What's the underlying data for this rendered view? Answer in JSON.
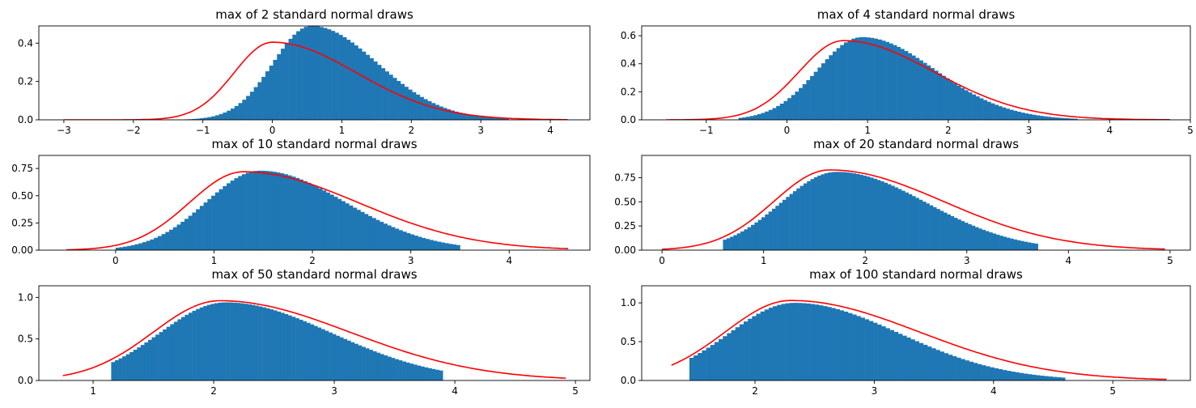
{
  "chart_data": [
    {
      "type": "bar",
      "title": "max of 2 standard normal draws",
      "xlim": [
        -3.36,
        4.57
      ],
      "ylim": [
        0,
        0.49
      ],
      "xticks": [
        -3,
        -2,
        -1,
        0,
        1,
        2,
        3,
        4
      ],
      "xtick_labels": [
        "−3",
        "−2",
        "−1",
        "0",
        "1",
        "2",
        "3",
        "4"
      ],
      "yticks": [
        0,
        0.2,
        0.4
      ],
      "ytick_labels": [
        "0.0",
        "0.2",
        "0.4"
      ],
      "hist_range": [
        -1.6,
        3.4
      ],
      "mode": 0.56,
      "peak": 0.49,
      "skew": 0.9,
      "curve_range": [
        -3.0,
        4.25
      ],
      "curve_mode": 0.0,
      "curve_peak": 0.405,
      "curve_skew": 1.5
    },
    {
      "type": "bar",
      "title": "max of 4 standard normal draws",
      "xlim": [
        -1.8,
        5.0
      ],
      "ylim": [
        0,
        0.67
      ],
      "xticks": [
        -1,
        0,
        1,
        2,
        3,
        4,
        5
      ],
      "xtick_labels": [
        "−1",
        "0",
        "1",
        "2",
        "3",
        "4",
        "5"
      ],
      "yticks": [
        0,
        0.2,
        0.4,
        0.6
      ],
      "ytick_labels": [
        "0.0",
        "0.2",
        "0.4",
        "0.6"
      ],
      "hist_range": [
        -0.6,
        3.6
      ],
      "mode": 0.93,
      "peak": 0.59,
      "skew": 0.8,
      "curve_range": [
        -1.5,
        4.75
      ],
      "curve_mode": 0.7,
      "curve_peak": 0.565,
      "curve_skew": 1.3
    },
    {
      "type": "bar",
      "title": "max of 10 standard normal draws",
      "xlim": [
        -0.78,
        4.82
      ],
      "ylim": [
        0,
        0.87
      ],
      "xticks": [
        0,
        1,
        2,
        3,
        4
      ],
      "xtick_labels": [
        "0",
        "1",
        "2",
        "3",
        "4"
      ],
      "yticks": [
        0,
        0.25,
        0.5,
        0.75
      ],
      "ytick_labels": [
        "0.00",
        "0.25",
        "0.50",
        "0.75"
      ],
      "hist_range": [
        0.0,
        3.5
      ],
      "mode": 1.47,
      "peak": 0.73,
      "skew": 0.7,
      "curve_range": [
        -0.5,
        4.6
      ],
      "curve_mode": 1.3,
      "curve_peak": 0.72,
      "curve_skew": 1.4
    },
    {
      "type": "bar",
      "title": "max of 20 standard normal draws",
      "xlim": [
        -0.2,
        5.2
      ],
      "ylim": [
        0,
        0.98
      ],
      "xticks": [
        0,
        1,
        2,
        3,
        4,
        5
      ],
      "xtick_labels": [
        "0",
        "1",
        "2",
        "3",
        "4",
        "5"
      ],
      "yticks": [
        0,
        0.25,
        0.5,
        0.75
      ],
      "ytick_labels": [
        "0.00",
        "0.25",
        "0.50",
        "0.75"
      ],
      "hist_range": [
        0.6,
        3.7
      ],
      "mode": 1.72,
      "peak": 0.81,
      "skew": 0.75,
      "curve_range": [
        0.0,
        4.95
      ],
      "curve_mode": 1.65,
      "curve_peak": 0.83,
      "curve_skew": 1.3
    },
    {
      "type": "bar",
      "title": "max of 50 standard normal draws",
      "xlim": [
        0.55,
        5.12
      ],
      "ylim": [
        0,
        1.14
      ],
      "xticks": [
        1,
        2,
        3,
        4,
        5
      ],
      "xtick_labels": [
        "1",
        "2",
        "3",
        "4",
        "5"
      ],
      "yticks": [
        0,
        0.5,
        1.0
      ],
      "ytick_labels": [
        "0.0",
        "0.5",
        "1.0"
      ],
      "hist_range": [
        1.15,
        3.9
      ],
      "mode": 2.1,
      "peak": 0.94,
      "skew": 0.75,
      "curve_range": [
        0.75,
        4.92
      ],
      "curve_mode": 2.05,
      "curve_peak": 0.96,
      "curve_skew": 1.2
    },
    {
      "type": "bar",
      "title": "max of 100 standard normal draws",
      "xlim": [
        1.05,
        5.65
      ],
      "ylim": [
        0,
        1.22
      ],
      "xticks": [
        2,
        3,
        4,
        5
      ],
      "xtick_labels": [
        "2",
        "3",
        "4",
        "5"
      ],
      "yticks": [
        0,
        0.5,
        1.0
      ],
      "ytick_labels": [
        "0.0",
        "0.5",
        "1.0"
      ],
      "hist_range": [
        1.45,
        4.6
      ],
      "mode": 2.33,
      "peak": 1.0,
      "skew": 0.75,
      "curve_range": [
        1.3,
        5.45
      ],
      "curve_mode": 2.3,
      "curve_peak": 1.03,
      "curve_skew": 1.2
    }
  ],
  "colors": {
    "bars": "#1f77b4",
    "curve": "#ff0000",
    "axes": "#000000"
  }
}
